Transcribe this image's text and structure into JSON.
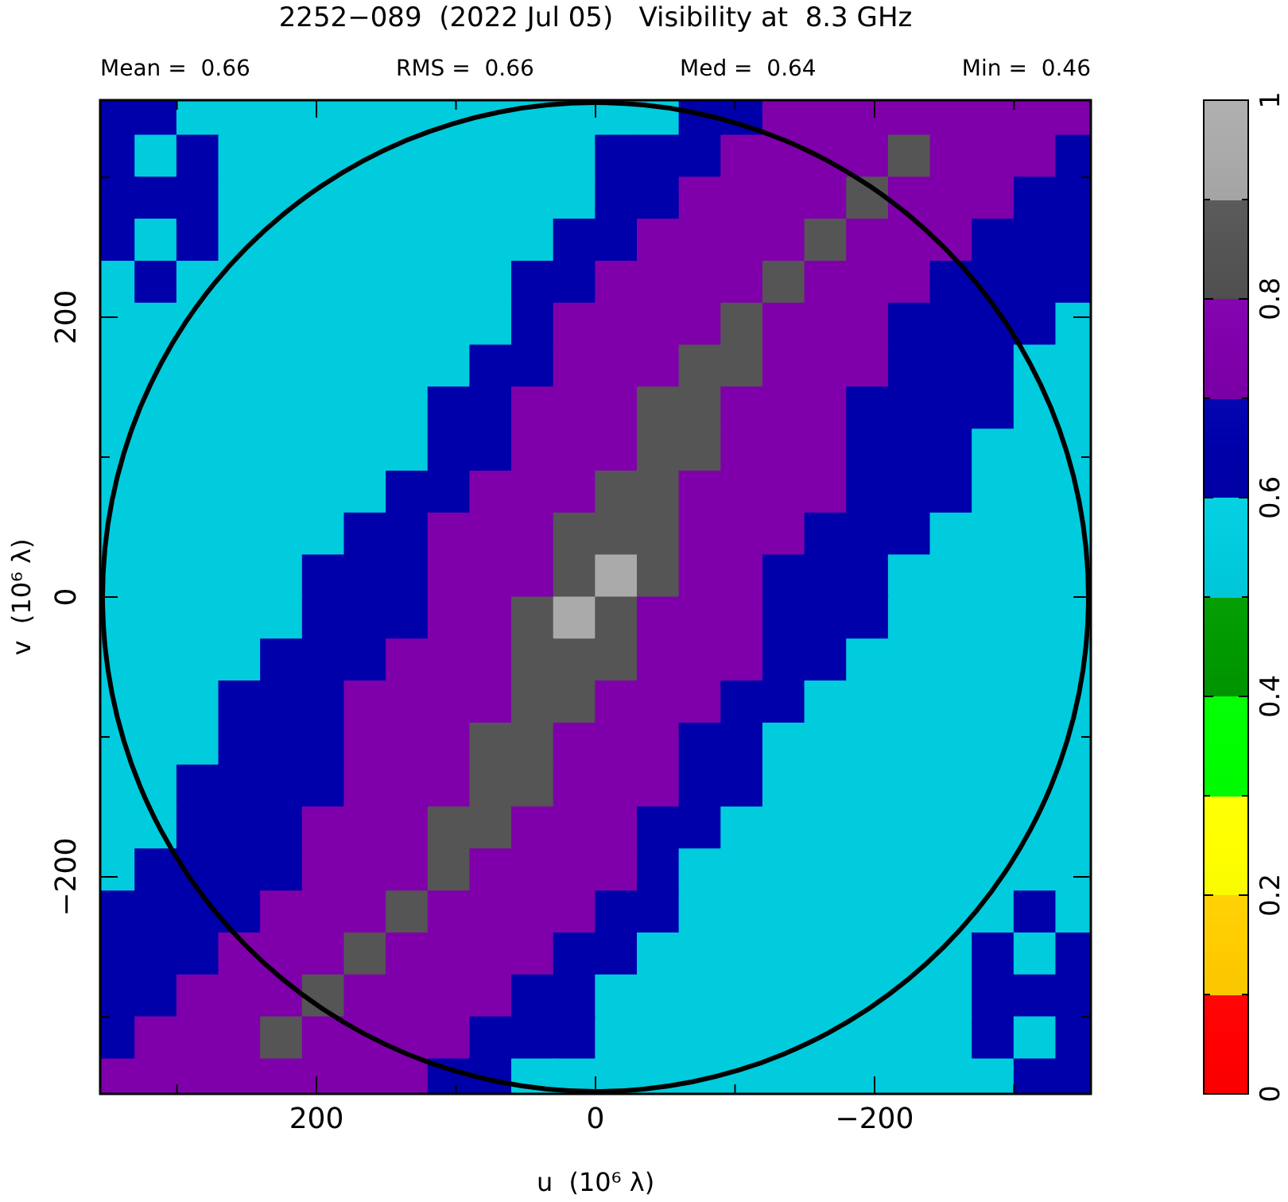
{
  "chart_data": {
    "type": "scatter",
    "title": "2252−089  (2022 Jul 05)   Visibility at  8.3 GHz",
    "annotations": [
      "Mean =  0.66",
      "RMS =  0.66",
      "Med =  0.64",
      "Min =  0.46"
    ],
    "xlabel": "u  (10⁶ λ)",
    "ylabel": "v  (10⁶ λ)",
    "xlim": [
      355,
      -355
    ],
    "ylim": [
      -355,
      355
    ],
    "xticks": [
      {
        "value": 300,
        "label": null
      },
      200,
      {
        "value": 100,
        "label": null
      },
      0,
      {
        "value": -100,
        "label": null
      },
      -200,
      {
        "value": -300,
        "label": null
      }
    ],
    "yticks": [
      {
        "value": -300,
        "label": null
      },
      -200,
      {
        "value": -100,
        "label": null
      },
      0,
      {
        "value": 100,
        "label": null
      },
      200,
      {
        "value": 300,
        "label": null
      }
    ],
    "clim": [
      0,
      1
    ],
    "cticks": [
      0,
      {
        "value": 0.1,
        "label": null
      },
      0.2,
      {
        "value": 0.3,
        "label": null
      },
      0.4,
      {
        "value": 0.5,
        "label": null
      },
      0.6,
      {
        "value": 0.7,
        "label": null
      },
      0.8,
      {
        "value": 0.9,
        "label": null
      },
      1
    ],
    "marker": "square",
    "x": [
      345,
      315,
      285,
      255,
      225,
      195,
      165,
      135,
      105,
      75,
      45,
      15,
      -15,
      -45,
      -75,
      -105,
      -135,
      -165,
      -195,
      -225,
      -255,
      -285,
      -315,
      -345,
      345,
      315,
      285,
      255,
      225,
      195,
      165,
      135,
      105,
      75,
      45,
      15,
      -15,
      -45,
      -75,
      -105,
      -135,
      -165,
      -195,
      -225,
      -255,
      -285,
      -315,
      -345,
      345,
      315,
      285,
      255,
      225,
      195,
      165,
      135,
      105,
      75,
      45,
      15,
      -15,
      -45,
      -75,
      -105,
      -135,
      -165,
      -195,
      -225,
      -255,
      -285,
      -315,
      -345,
      345,
      315,
      285,
      255,
      225,
      195,
      165,
      135,
      105,
      75,
      45,
      15,
      -15,
      -45,
      -75,
      -105,
      -135,
      -165,
      -195,
      -225,
      -255,
      -285,
      -315,
      -345,
      345,
      315,
      285,
      255,
      225,
      195,
      165,
      135,
      105,
      75,
      45,
      15,
      -15,
      -45,
      -75,
      -105,
      -135,
      -165,
      -195,
      -225,
      -255,
      -285,
      -315,
      -345,
      345,
      315,
      285,
      255,
      225,
      195,
      165,
      135,
      105,
      75,
      45,
      15,
      -15,
      -45,
      -75,
      -105,
      -135,
      -165,
      -195,
      -225,
      -255,
      -285,
      -315,
      -345,
      345,
      315,
      285,
      255,
      225,
      195,
      165,
      135,
      105,
      75,
      45,
      15,
      -15,
      -45,
      -75,
      -105,
      -135,
      -165,
      -195,
      -225,
      -255,
      -285,
      -315,
      -345,
      345,
      315,
      285,
      255,
      225,
      195,
      165,
      135,
      105,
      75,
      45,
      15,
      -15,
      -45,
      -75,
      -105,
      -135,
      -165,
      -195,
      -225,
      -255,
      -285,
      -315,
      -345,
      345,
      315,
      285,
      255,
      225,
      195,
      165,
      135,
      105,
      75,
      45,
      15,
      -15,
      -45,
      -75,
      -105,
      -135,
      -165,
      -195,
      -225,
      -255,
      -285,
      -315,
      -345,
      345,
      315,
      285,
      255,
      225,
      195,
      165,
      135,
      105,
      75,
      45,
      15,
      -15,
      -45,
      -75,
      -105,
      -135,
      -165,
      -195,
      -225,
      -255,
      -285,
      -315,
      -345,
      345,
      315,
      285,
      255,
      225,
      195,
      165,
      135,
      105,
      75,
      45,
      15,
      -15,
      -45,
      -75,
      -105,
      -135,
      -165,
      -195,
      -225,
      -255,
      -285,
      -315,
      -345,
      345,
      315,
      285,
      255,
      225,
      195,
      165,
      135,
      105,
      75,
      45,
      15,
      -15,
      -45,
      -75,
      -105,
      -135,
      -165,
      -195,
      -225,
      -255,
      -285,
      -315,
      -345,
      345,
      315,
      285,
      255,
      225,
      195,
      165,
      135,
      105,
      75,
      45,
      15,
      -15,
      -45,
      -75,
      -105,
      -135,
      -165,
      -195,
      -225,
      -255,
      -285,
      -315,
      -345,
      345,
      315,
      285,
      255,
      225,
      195,
      165,
      135,
      105,
      75,
      45,
      15,
      -15,
      -45,
      -75,
      -105,
      -135,
      -165,
      -195,
      -225,
      -255,
      -285,
      -315,
      -345,
      345,
      315,
      285,
      255,
      225,
      195,
      165,
      135,
      105,
      75,
      45,
      15,
      -15,
      -45,
      -75,
      -105,
      -135,
      -165,
      -195,
      -225,
      -255,
      -285,
      -315,
      -345,
      345,
      315,
      285,
      255,
      225,
      195,
      165,
      135,
      105,
      75,
      45,
      15,
      -15,
      -45,
      -75,
      -105,
      -135,
      -165,
      -195,
      -225,
      -255,
      -285,
      -315,
      -345,
      345,
      315,
      285,
      255,
      225,
      195,
      165,
      135,
      105,
      75,
      45,
      15,
      -15,
      -45,
      -75,
      -105,
      -135,
      -165,
      -195,
      -225,
      -255,
      -285,
      -315,
      -345,
      345,
      315,
      285,
      255,
      225,
      195,
      165,
      135,
      105,
      75,
      45,
      15,
      -15,
      -45,
      -75,
      -105,
      -135,
      -165,
      -195,
      -225,
      -255,
      -285,
      -315,
      -345,
      345,
      315,
      285,
      255,
      225,
      195,
      165,
      135,
      105,
      75,
      45,
      15,
      -15,
      -45,
      -75,
      -105,
      -135,
      -165,
      -195,
      -225,
      -255,
      -285,
      -315,
      -345,
      345,
      315,
      285,
      255,
      225,
      195,
      165,
      135,
      105,
      75,
      45,
      15,
      -15,
      -45,
      -75,
      -105,
      -135,
      -165,
      -195,
      -225,
      -255,
      -285,
      -315,
      -345,
      345,
      315,
      285,
      255,
      225,
      195,
      165,
      135,
      105,
      75,
      45,
      15,
      -15,
      -45,
      -75,
      -105,
      -135,
      -165,
      -195,
      -225,
      -255,
      -285,
      -315,
      -345,
      345,
      315,
      285,
      255,
      225,
      195,
      165,
      135,
      105,
      75,
      45,
      15,
      -15,
      -45,
      -75,
      -105,
      -135,
      -165,
      -195,
      -225,
      -255,
      -285,
      -315,
      -345,
      345,
      315,
      285,
      255,
      225,
      195,
      165,
      135,
      105,
      75,
      45,
      15,
      -15,
      -45,
      -75,
      -105,
      -135,
      -165,
      -195,
      -225,
      -255,
      -285,
      -315,
      -345,
      345,
      315,
      285,
      255,
      225,
      195,
      165,
      135,
      105,
      75,
      45,
      15,
      -15,
      -45,
      -75,
      -105,
      -135,
      -165,
      -195,
      -225,
      -255,
      -285,
      -315,
      -345
    ],
    "values": [
      345,
      345,
      345,
      345,
      345,
      345,
      345,
      345,
      345,
      345,
      345,
      345,
      345,
      345,
      345,
      345,
      345,
      345,
      345,
      345,
      345,
      345,
      345,
      345,
      315,
      315,
      315,
      315,
      315,
      315,
      315,
      315,
      315,
      315,
      315,
      315,
      315,
      315,
      315,
      315,
      315,
      315,
      315,
      315,
      315,
      315,
      315,
      315,
      285,
      285,
      285,
      285,
      285,
      285,
      285,
      285,
      285,
      285,
      285,
      285,
      285,
      285,
      285,
      285,
      285,
      285,
      285,
      285,
      285,
      285,
      285,
      285,
      255,
      255,
      255,
      255,
      255,
      255,
      255,
      255,
      255,
      255,
      255,
      255,
      255,
      255,
      255,
      255,
      255,
      255,
      255,
      255,
      255,
      255,
      255,
      255,
      225,
      225,
      225,
      225,
      225,
      225,
      225,
      225,
      225,
      225,
      225,
      225,
      225,
      225,
      225,
      225,
      225,
      225,
      225,
      225,
      225,
      225,
      225,
      225,
      195,
      195,
      195,
      195,
      195,
      195,
      195,
      195,
      195,
      195,
      195,
      195,
      195,
      195,
      195,
      195,
      195,
      195,
      195,
      195,
      195,
      195,
      195,
      195,
      165,
      165,
      165,
      165,
      165,
      165,
      165,
      165,
      165,
      165,
      165,
      165,
      165,
      165,
      165,
      165,
      165,
      165,
      165,
      165,
      165,
      165,
      165,
      165,
      135,
      135,
      135,
      135,
      135,
      135,
      135,
      135,
      135,
      135,
      135,
      135,
      135,
      135,
      135,
      135,
      135,
      135,
      135,
      135,
      135,
      135,
      135,
      135,
      105,
      105,
      105,
      105,
      105,
      105,
      105,
      105,
      105,
      105,
      105,
      105,
      105,
      105,
      105,
      105,
      105,
      105,
      105,
      105,
      105,
      105,
      105,
      105,
      75,
      75,
      75,
      75,
      75,
      75,
      75,
      75,
      75,
      75,
      75,
      75,
      75,
      75,
      75,
      75,
      75,
      75,
      75,
      75,
      75,
      75,
      75,
      75,
      45,
      45,
      45,
      45,
      45,
      45,
      45,
      45,
      45,
      45,
      45,
      45,
      45,
      45,
      45,
      45,
      45,
      45,
      45,
      45,
      45,
      45,
      45,
      45,
      15,
      15,
      15,
      15,
      15,
      15,
      15,
      15,
      15,
      15,
      15,
      15,
      15,
      15,
      15,
      15,
      15,
      15,
      15,
      15,
      15,
      15,
      15,
      15,
      -15,
      -15,
      -15,
      -15,
      -15,
      -15,
      -15,
      -15,
      -15,
      -15,
      -15,
      -15,
      -15,
      -15,
      -15,
      -15,
      -15,
      -15,
      -15,
      -15,
      -15,
      -15,
      -15,
      -15,
      -45,
      -45,
      -45,
      -45,
      -45,
      -45,
      -45,
      -45,
      -45,
      -45,
      -45,
      -45,
      -45,
      -45,
      -45,
      -45,
      -45,
      -45,
      -45,
      -45,
      -45,
      -45,
      -45,
      -45,
      -75,
      -75,
      -75,
      -75,
      -75,
      -75,
      -75,
      -75,
      -75,
      -75,
      -75,
      -75,
      -75,
      -75,
      -75,
      -75,
      -75,
      -75,
      -75,
      -75,
      -75,
      -75,
      -75,
      -75,
      -105,
      -105,
      -105,
      -105,
      -105,
      -105,
      -105,
      -105,
      -105,
      -105,
      -105,
      -105,
      -105,
      -105,
      -105,
      -105,
      -105,
      -105,
      -105,
      -105,
      -105,
      -105,
      -105,
      -105,
      -135,
      -135,
      -135,
      -135,
      -135,
      -135,
      -135,
      -135,
      -135,
      -135,
      -135,
      -135,
      -135,
      -135,
      -135,
      -135,
      -135,
      -135,
      -135,
      -135,
      -135,
      -135,
      -135,
      -135,
      -165,
      -165,
      -165,
      -165,
      -165,
      -165,
      -165,
      -165,
      -165,
      -165,
      -165,
      -165,
      -165,
      -165,
      -165,
      -165,
      -165,
      -165,
      -165,
      -165,
      -165,
      -165,
      -165,
      -165,
      -195,
      -195,
      -195,
      -195,
      -195,
      -195,
      -195,
      -195,
      -195,
      -195,
      -195,
      -195,
      -195,
      -195,
      -195,
      -195,
      -195,
      -195,
      -195,
      -195,
      -195,
      -195,
      -195,
      -195,
      -225,
      -225,
      -225,
      -225,
      -225,
      -225,
      -225,
      -225,
      -225,
      -225,
      -225,
      -225,
      -225,
      -225,
      -225,
      -225,
      -225,
      -225,
      -225,
      -225,
      -225,
      -225,
      -225,
      -225,
      -255,
      -255,
      -255,
      -255,
      -255,
      -255,
      -255,
      -255,
      -255,
      -255,
      -255,
      -255,
      -255,
      -255,
      -255,
      -255,
      -255,
      -255,
      -255,
      -255,
      -255,
      -255,
      -255,
      -255,
      -285,
      -285,
      -285,
      -285,
      -285,
      -285,
      -285,
      -285,
      -285,
      -285,
      -285,
      -285,
      -285,
      -285,
      -285,
      -285,
      -285,
      -285,
      -285,
      -285,
      -285,
      -285,
      -285,
      -285,
      -315,
      -315,
      -315,
      -315,
      -315,
      -315,
      -315,
      -315,
      -315,
      -315,
      -315,
      -315,
      -315,
      -315,
      -315,
      -315,
      -315,
      -315,
      -315,
      -315,
      -315,
      -315,
      -315,
      -315,
      -345,
      -345,
      -345,
      -345,
      -345,
      -345,
      -345,
      -345,
      -345,
      -345,
      -345,
      -345,
      -345,
      -345,
      -345,
      -345,
      -345,
      -345,
      -345,
      -345,
      -345,
      -345,
      -345,
      -345
    ],
    "cvalues": [
      0.65,
      0.65,
      0.55,
      0.55,
      0.55,
      0.55,
      0.55,
      0.55,
      0.55,
      0.55,
      0.55,
      0.55,
      0.55,
      0.55,
      0.65,
      0.65,
      0.75,
      0.75,
      0.75,
      0.75,
      0.75,
      0.75,
      0.75,
      0.75,
      0.65,
      0.55,
      0.65,
      0.55,
      0.55,
      0.55,
      0.55,
      0.55,
      0.55,
      0.55,
      0.55,
      0.55,
      0.65,
      0.65,
      0.65,
      0.75,
      0.75,
      0.75,
      0.75,
      0.85,
      0.75,
      0.75,
      0.75,
      0.65,
      0.65,
      0.65,
      0.65,
      0.55,
      0.55,
      0.55,
      0.55,
      0.55,
      0.55,
      0.55,
      0.55,
      0.55,
      0.65,
      0.65,
      0.75,
      0.75,
      0.75,
      0.75,
      0.85,
      0.75,
      0.75,
      0.75,
      0.65,
      0.65,
      0.65,
      0.55,
      0.65,
      0.55,
      0.55,
      0.55,
      0.55,
      0.55,
      0.55,
      0.55,
      0.55,
      0.65,
      0.65,
      0.75,
      0.75,
      0.75,
      0.75,
      0.85,
      0.75,
      0.75,
      0.75,
      0.65,
      0.65,
      0.65,
      0.55,
      0.65,
      0.55,
      0.55,
      0.55,
      0.55,
      0.55,
      0.55,
      0.55,
      0.55,
      0.65,
      0.65,
      0.75,
      0.75,
      0.75,
      0.75,
      0.85,
      0.75,
      0.75,
      0.75,
      0.65,
      0.65,
      0.65,
      0.65,
      0.55,
      0.55,
      0.55,
      0.55,
      0.55,
      0.55,
      0.55,
      0.55,
      0.55,
      0.55,
      0.65,
      0.75,
      0.75,
      0.75,
      0.75,
      0.85,
      0.75,
      0.75,
      0.75,
      0.65,
      0.65,
      0.65,
      0.65,
      0.55,
      0.55,
      0.55,
      0.55,
      0.55,
      0.55,
      0.55,
      0.55,
      0.55,
      0.55,
      0.65,
      0.65,
      0.75,
      0.75,
      0.75,
      0.85,
      0.85,
      0.75,
      0.75,
      0.75,
      0.65,
      0.65,
      0.65,
      0.55,
      0.55,
      0.55,
      0.55,
      0.55,
      0.55,
      0.55,
      0.55,
      0.55,
      0.55,
      0.65,
      0.65,
      0.75,
      0.75,
      0.75,
      0.85,
      0.85,
      0.75,
      0.75,
      0.75,
      0.65,
      0.65,
      0.65,
      0.65,
      0.55,
      0.55,
      0.55,
      0.55,
      0.55,
      0.55,
      0.55,
      0.55,
      0.55,
      0.55,
      0.65,
      0.65,
      0.75,
      0.75,
      0.75,
      0.85,
      0.85,
      0.75,
      0.75,
      0.75,
      0.65,
      0.65,
      0.65,
      0.55,
      0.55,
      0.55,
      0.55,
      0.55,
      0.55,
      0.55,
      0.55,
      0.55,
      0.55,
      0.65,
      0.65,
      0.75,
      0.75,
      0.75,
      0.85,
      0.85,
      0.75,
      0.75,
      0.75,
      0.75,
      0.65,
      0.65,
      0.65,
      0.55,
      0.55,
      0.55,
      0.55,
      0.55,
      0.55,
      0.55,
      0.55,
      0.55,
      0.65,
      0.65,
      0.75,
      0.75,
      0.75,
      0.85,
      0.85,
      0.85,
      0.75,
      0.75,
      0.75,
      0.65,
      0.65,
      0.65,
      0.55,
      0.55,
      0.55,
      0.55,
      0.55,
      0.55,
      0.55,
      0.55,
      0.55,
      0.65,
      0.65,
      0.65,
      0.75,
      0.75,
      0.75,
      0.85,
      0.95,
      0.85,
      0.75,
      0.75,
      0.65,
      0.65,
      0.65,
      0.55,
      0.55,
      0.55,
      0.55,
      0.55,
      0.55,
      0.55,
      0.55,
      0.55,
      0.55,
      0.65,
      0.65,
      0.65,
      0.75,
      0.75,
      0.85,
      0.95,
      0.85,
      0.75,
      0.75,
      0.75,
      0.65,
      0.65,
      0.65,
      0.55,
      0.55,
      0.55,
      0.55,
      0.55,
      0.55,
      0.55,
      0.55,
      0.55,
      0.65,
      0.65,
      0.65,
      0.75,
      0.75,
      0.75,
      0.85,
      0.85,
      0.85,
      0.75,
      0.75,
      0.75,
      0.65,
      0.65,
      0.55,
      0.55,
      0.55,
      0.55,
      0.55,
      0.55,
      0.55,
      0.55,
      0.55,
      0.65,
      0.65,
      0.65,
      0.75,
      0.75,
      0.75,
      0.75,
      0.85,
      0.85,
      0.75,
      0.75,
      0.75,
      0.65,
      0.65,
      0.55,
      0.55,
      0.55,
      0.55,
      0.55,
      0.55,
      0.55,
      0.55,
      0.55,
      0.55,
      0.65,
      0.65,
      0.65,
      0.75,
      0.75,
      0.75,
      0.85,
      0.85,
      0.75,
      0.75,
      0.75,
      0.65,
      0.65,
      0.55,
      0.55,
      0.55,
      0.55,
      0.55,
      0.55,
      0.55,
      0.55,
      0.55,
      0.55,
      0.65,
      0.65,
      0.65,
      0.65,
      0.75,
      0.75,
      0.75,
      0.85,
      0.85,
      0.75,
      0.75,
      0.75,
      0.65,
      0.65,
      0.55,
      0.55,
      0.55,
      0.55,
      0.55,
      0.55,
      0.55,
      0.55,
      0.55,
      0.55,
      0.65,
      0.65,
      0.65,
      0.75,
      0.75,
      0.75,
      0.85,
      0.85,
      0.75,
      0.75,
      0.75,
      0.65,
      0.65,
      0.55,
      0.55,
      0.55,
      0.55,
      0.55,
      0.55,
      0.55,
      0.55,
      0.55,
      0.55,
      0.65,
      0.65,
      0.65,
      0.65,
      0.75,
      0.75,
      0.75,
      0.85,
      0.75,
      0.75,
      0.75,
      0.75,
      0.65,
      0.55,
      0.55,
      0.55,
      0.55,
      0.55,
      0.55,
      0.55,
      0.55,
      0.55,
      0.55,
      0.65,
      0.65,
      0.65,
      0.65,
      0.75,
      0.75,
      0.75,
      0.85,
      0.75,
      0.75,
      0.75,
      0.75,
      0.65,
      0.65,
      0.55,
      0.55,
      0.55,
      0.55,
      0.55,
      0.55,
      0.55,
      0.55,
      0.65,
      0.55,
      0.65,
      0.65,
      0.65,
      0.75,
      0.75,
      0.75,
      0.85,
      0.75,
      0.75,
      0.75,
      0.75,
      0.65,
      0.65,
      0.55,
      0.55,
      0.55,
      0.55,
      0.55,
      0.55,
      0.55,
      0.55,
      0.65,
      0.55,
      0.65,
      0.65,
      0.65,
      0.75,
      0.75,
      0.75,
      0.85,
      0.75,
      0.75,
      0.75,
      0.75,
      0.65,
      0.65,
      0.55,
      0.55,
      0.55,
      0.55,
      0.55,
      0.55,
      0.55,
      0.55,
      0.55,
      0.65,
      0.65,
      0.65,
      0.65,
      0.75,
      0.75,
      0.75,
      0.85,
      0.75,
      0.75,
      0.75,
      0.75,
      0.65,
      0.65,
      0.65,
      0.55,
      0.55,
      0.55,
      0.55,
      0.55,
      0.55,
      0.55,
      0.55,
      0.55,
      0.65,
      0.55,
      0.65,
      0.75,
      0.75,
      0.75,
      0.75,
      0.75,
      0.75,
      0.75,
      0.75,
      0.65,
      0.65,
      0.55,
      0.55,
      0.55,
      0.55,
      0.55,
      0.55,
      0.55,
      0.55,
      0.55,
      0.55,
      0.55,
      0.55,
      0.65,
      0.65
    ]
  }
}
